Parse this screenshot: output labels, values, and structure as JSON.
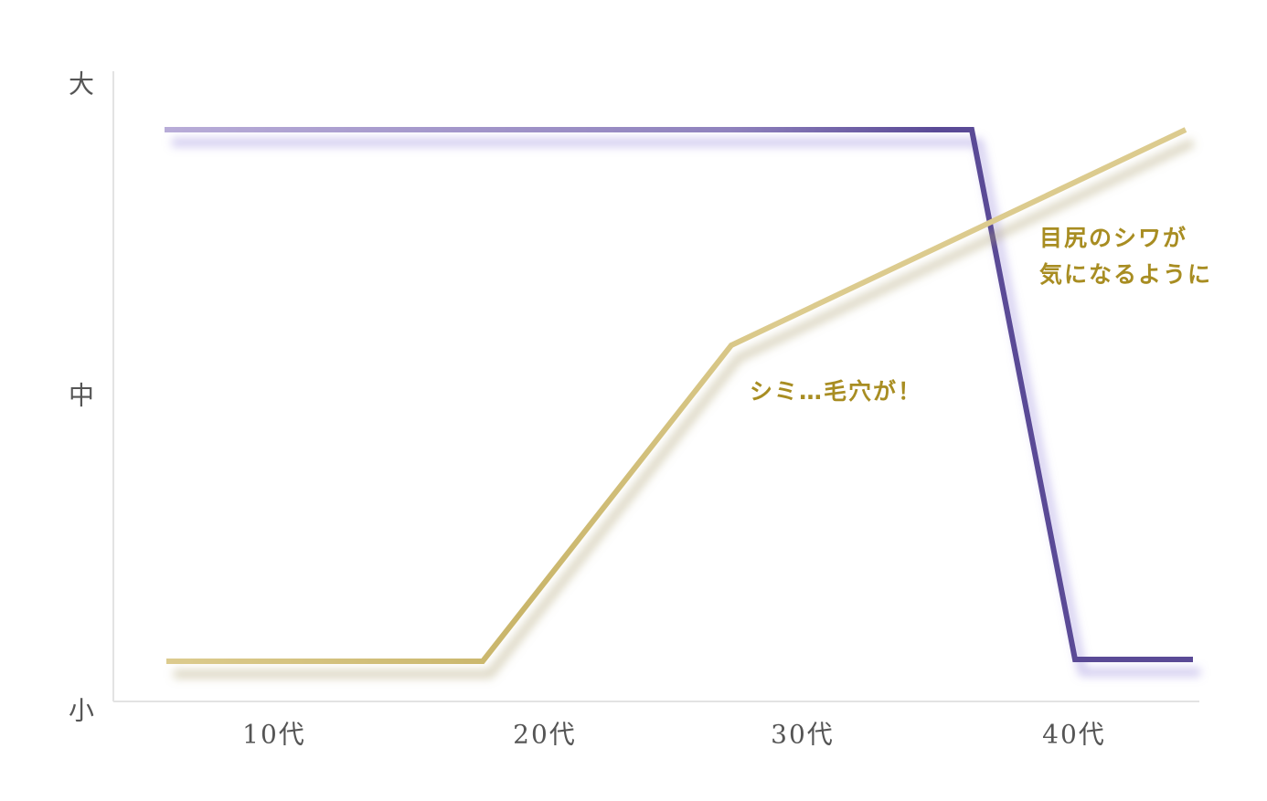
{
  "chart_data": {
    "type": "line",
    "x_categories": [
      "10代",
      "20代",
      "30代",
      "40代"
    ],
    "y_categories": [
      "小",
      "中",
      "大"
    ],
    "ylim": [
      0,
      1
    ],
    "grid": false,
    "series": [
      {
        "color": "#5a4a96",
        "color_light": "#b8acd8",
        "points": [
          [
            0.2,
            0.9
          ],
          [
            3.2,
            0.9
          ],
          [
            3.6,
            0.07
          ],
          [
            4.0,
            0.07
          ]
        ]
      },
      {
        "color": "#dccb8e",
        "color_dark": "#c9b56a",
        "points": [
          [
            0.2,
            0.07
          ],
          [
            1.3,
            0.07
          ],
          [
            2.2,
            0.56
          ],
          [
            4.0,
            0.9
          ]
        ]
      }
    ],
    "annotations": [
      {
        "lines": [
          "シミ…毛穴が！"
        ],
        "x": 2.3,
        "y": 0.5
      },
      {
        "lines": [
          "目尻のシワが",
          "気になるように"
        ],
        "x": 3.45,
        "y": 0.75
      }
    ],
    "annotation_color": "#a88d22",
    "axis_color": "#e3e3e3"
  }
}
